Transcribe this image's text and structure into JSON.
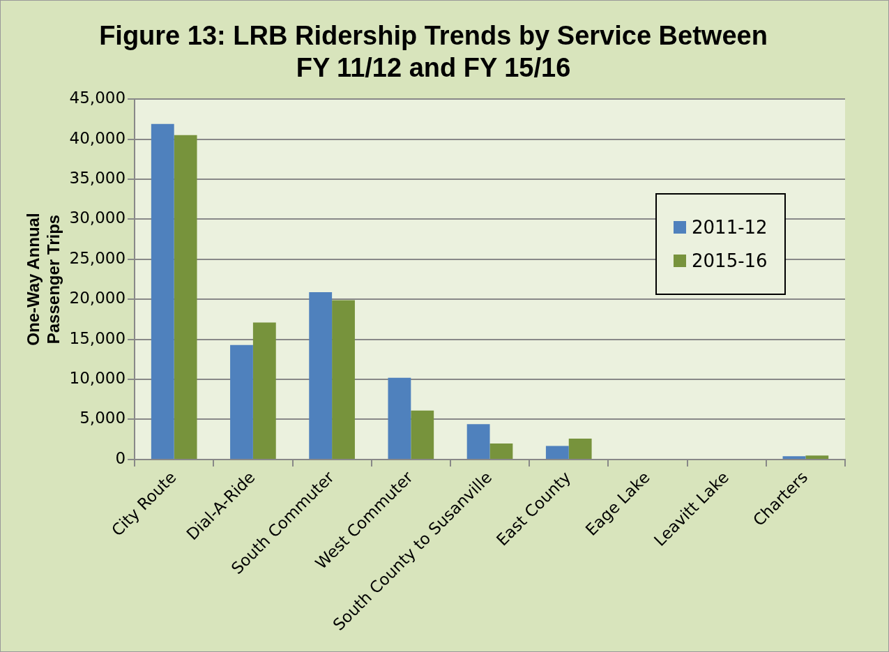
{
  "chart_data": {
    "type": "bar",
    "title": "Figure 13: LRB Ridership Trends by Service Between FY 11/12 and FY 15/16",
    "ylabel": "One-Way Annual Passenger Trips",
    "categories": [
      "City Route",
      "Dial-A-Ride",
      "South Commuter",
      "West Commuter",
      "South County to Susanville",
      "East County",
      "Eage Lake",
      "Leavitt Lake",
      "Charters"
    ],
    "series": [
      {
        "name": "2011-12",
        "color": "#4f81bd",
        "values": [
          41900,
          14300,
          20900,
          10200,
          4400,
          1700,
          0,
          0,
          400
        ]
      },
      {
        "name": "2015-16",
        "color": "#77933c",
        "values": [
          40500,
          17100,
          19900,
          6100,
          2000,
          2600,
          0,
          0,
          500
        ]
      }
    ],
    "ylim": [
      0,
      45000
    ],
    "yticks": [
      0,
      {
        "value": 5000,
        "label": "5,000"
      },
      {
        "value": 10000,
        "label": "10,000"
      },
      {
        "value": 15000,
        "label": "15,000"
      },
      {
        "value": 20000,
        "label": "20,000"
      },
      {
        "value": 25000,
        "label": "25,000"
      },
      {
        "value": 30000,
        "label": "30,000"
      },
      {
        "value": 35000,
        "label": "35,000"
      },
      {
        "value": 40000,
        "label": "40,000"
      },
      {
        "value": 45000,
        "label": "45,000"
      }
    ],
    "grid": "y",
    "legend": "right"
  }
}
